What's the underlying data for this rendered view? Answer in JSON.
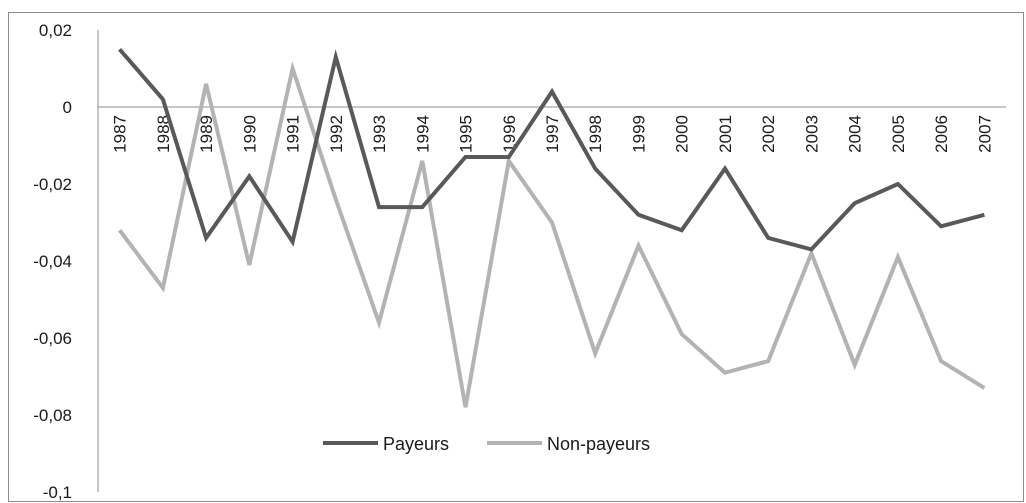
{
  "chart_data": {
    "type": "line",
    "x": [
      "1987",
      "1988",
      "1989",
      "1990",
      "1991",
      "1992",
      "1993",
      "1994",
      "1995",
      "1996",
      "1997",
      "1998",
      "1999",
      "2000",
      "2001",
      "2002",
      "2003",
      "2004",
      "2005",
      "2006",
      "2007"
    ],
    "series": [
      {
        "name": "Payeurs",
        "color": "#595959",
        "values": [
          0.015,
          0.002,
          -0.034,
          -0.018,
          -0.035,
          0.013,
          -0.026,
          -0.026,
          -0.013,
          -0.013,
          0.004,
          -0.016,
          -0.028,
          -0.032,
          -0.016,
          -0.034,
          -0.037,
          -0.025,
          -0.02,
          -0.031,
          -0.028
        ]
      },
      {
        "name": "Non-payeurs",
        "color": "#b3b3b3",
        "values": [
          -0.032,
          -0.047,
          0.006,
          -0.041,
          0.01,
          -0.024,
          -0.056,
          -0.014,
          -0.078,
          -0.014,
          -0.03,
          -0.064,
          -0.036,
          -0.059,
          -0.069,
          -0.066,
          -0.038,
          -0.067,
          -0.039,
          -0.066,
          -0.073
        ]
      }
    ],
    "yticks": [
      "0,02",
      "0",
      "-0,02",
      "-0,04",
      "-0,06",
      "-0,08",
      "-0,1"
    ],
    "ylim": [
      -0.1,
      0.02
    ],
    "grid": false,
    "legend_position": "bottom-center",
    "title": "",
    "xlabel": "",
    "ylabel": ""
  }
}
